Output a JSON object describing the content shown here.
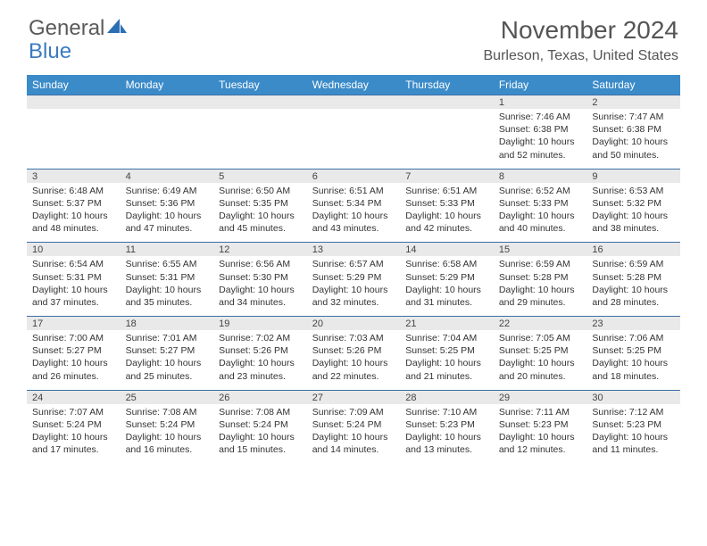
{
  "logo": {
    "text_a": "General",
    "text_b": "Blue"
  },
  "title": "November 2024",
  "location": "Burleson, Texas, United States",
  "colors": {
    "header_bg": "#3b8bc9",
    "header_text": "#ffffff",
    "daynum_bg": "#e9e9e9",
    "daynum_border": "#3b6fa5",
    "body_bg": "#ffffff",
    "text": "#333333",
    "logo_gray": "#5a5a5a",
    "logo_blue": "#3b7bbf"
  },
  "day_names": [
    "Sunday",
    "Monday",
    "Tuesday",
    "Wednesday",
    "Thursday",
    "Friday",
    "Saturday"
  ],
  "weeks": [
    [
      {
        "n": "",
        "lines": []
      },
      {
        "n": "",
        "lines": []
      },
      {
        "n": "",
        "lines": []
      },
      {
        "n": "",
        "lines": []
      },
      {
        "n": "",
        "lines": []
      },
      {
        "n": "1",
        "lines": [
          "Sunrise: 7:46 AM",
          "Sunset: 6:38 PM",
          "Daylight: 10 hours",
          "and 52 minutes."
        ]
      },
      {
        "n": "2",
        "lines": [
          "Sunrise: 7:47 AM",
          "Sunset: 6:38 PM",
          "Daylight: 10 hours",
          "and 50 minutes."
        ]
      }
    ],
    [
      {
        "n": "3",
        "lines": [
          "Sunrise: 6:48 AM",
          "Sunset: 5:37 PM",
          "Daylight: 10 hours",
          "and 48 minutes."
        ]
      },
      {
        "n": "4",
        "lines": [
          "Sunrise: 6:49 AM",
          "Sunset: 5:36 PM",
          "Daylight: 10 hours",
          "and 47 minutes."
        ]
      },
      {
        "n": "5",
        "lines": [
          "Sunrise: 6:50 AM",
          "Sunset: 5:35 PM",
          "Daylight: 10 hours",
          "and 45 minutes."
        ]
      },
      {
        "n": "6",
        "lines": [
          "Sunrise: 6:51 AM",
          "Sunset: 5:34 PM",
          "Daylight: 10 hours",
          "and 43 minutes."
        ]
      },
      {
        "n": "7",
        "lines": [
          "Sunrise: 6:51 AM",
          "Sunset: 5:33 PM",
          "Daylight: 10 hours",
          "and 42 minutes."
        ]
      },
      {
        "n": "8",
        "lines": [
          "Sunrise: 6:52 AM",
          "Sunset: 5:33 PM",
          "Daylight: 10 hours",
          "and 40 minutes."
        ]
      },
      {
        "n": "9",
        "lines": [
          "Sunrise: 6:53 AM",
          "Sunset: 5:32 PM",
          "Daylight: 10 hours",
          "and 38 minutes."
        ]
      }
    ],
    [
      {
        "n": "10",
        "lines": [
          "Sunrise: 6:54 AM",
          "Sunset: 5:31 PM",
          "Daylight: 10 hours",
          "and 37 minutes."
        ]
      },
      {
        "n": "11",
        "lines": [
          "Sunrise: 6:55 AM",
          "Sunset: 5:31 PM",
          "Daylight: 10 hours",
          "and 35 minutes."
        ]
      },
      {
        "n": "12",
        "lines": [
          "Sunrise: 6:56 AM",
          "Sunset: 5:30 PM",
          "Daylight: 10 hours",
          "and 34 minutes."
        ]
      },
      {
        "n": "13",
        "lines": [
          "Sunrise: 6:57 AM",
          "Sunset: 5:29 PM",
          "Daylight: 10 hours",
          "and 32 minutes."
        ]
      },
      {
        "n": "14",
        "lines": [
          "Sunrise: 6:58 AM",
          "Sunset: 5:29 PM",
          "Daylight: 10 hours",
          "and 31 minutes."
        ]
      },
      {
        "n": "15",
        "lines": [
          "Sunrise: 6:59 AM",
          "Sunset: 5:28 PM",
          "Daylight: 10 hours",
          "and 29 minutes."
        ]
      },
      {
        "n": "16",
        "lines": [
          "Sunrise: 6:59 AM",
          "Sunset: 5:28 PM",
          "Daylight: 10 hours",
          "and 28 minutes."
        ]
      }
    ],
    [
      {
        "n": "17",
        "lines": [
          "Sunrise: 7:00 AM",
          "Sunset: 5:27 PM",
          "Daylight: 10 hours",
          "and 26 minutes."
        ]
      },
      {
        "n": "18",
        "lines": [
          "Sunrise: 7:01 AM",
          "Sunset: 5:27 PM",
          "Daylight: 10 hours",
          "and 25 minutes."
        ]
      },
      {
        "n": "19",
        "lines": [
          "Sunrise: 7:02 AM",
          "Sunset: 5:26 PM",
          "Daylight: 10 hours",
          "and 23 minutes."
        ]
      },
      {
        "n": "20",
        "lines": [
          "Sunrise: 7:03 AM",
          "Sunset: 5:26 PM",
          "Daylight: 10 hours",
          "and 22 minutes."
        ]
      },
      {
        "n": "21",
        "lines": [
          "Sunrise: 7:04 AM",
          "Sunset: 5:25 PM",
          "Daylight: 10 hours",
          "and 21 minutes."
        ]
      },
      {
        "n": "22",
        "lines": [
          "Sunrise: 7:05 AM",
          "Sunset: 5:25 PM",
          "Daylight: 10 hours",
          "and 20 minutes."
        ]
      },
      {
        "n": "23",
        "lines": [
          "Sunrise: 7:06 AM",
          "Sunset: 5:25 PM",
          "Daylight: 10 hours",
          "and 18 minutes."
        ]
      }
    ],
    [
      {
        "n": "24",
        "lines": [
          "Sunrise: 7:07 AM",
          "Sunset: 5:24 PM",
          "Daylight: 10 hours",
          "and 17 minutes."
        ]
      },
      {
        "n": "25",
        "lines": [
          "Sunrise: 7:08 AM",
          "Sunset: 5:24 PM",
          "Daylight: 10 hours",
          "and 16 minutes."
        ]
      },
      {
        "n": "26",
        "lines": [
          "Sunrise: 7:08 AM",
          "Sunset: 5:24 PM",
          "Daylight: 10 hours",
          "and 15 minutes."
        ]
      },
      {
        "n": "27",
        "lines": [
          "Sunrise: 7:09 AM",
          "Sunset: 5:24 PM",
          "Daylight: 10 hours",
          "and 14 minutes."
        ]
      },
      {
        "n": "28",
        "lines": [
          "Sunrise: 7:10 AM",
          "Sunset: 5:23 PM",
          "Daylight: 10 hours",
          "and 13 minutes."
        ]
      },
      {
        "n": "29",
        "lines": [
          "Sunrise: 7:11 AM",
          "Sunset: 5:23 PM",
          "Daylight: 10 hours",
          "and 12 minutes."
        ]
      },
      {
        "n": "30",
        "lines": [
          "Sunrise: 7:12 AM",
          "Sunset: 5:23 PM",
          "Daylight: 10 hours",
          "and 11 minutes."
        ]
      }
    ]
  ]
}
